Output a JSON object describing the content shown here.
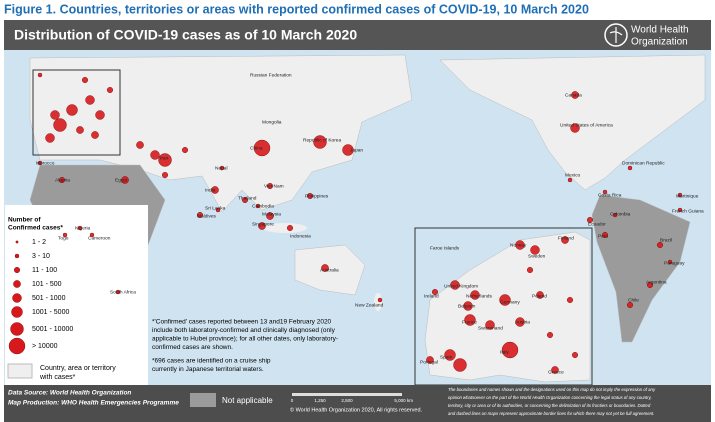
{
  "title": "Figure 1. Countries, territories or areas with reported confirmed cases of COVID-19, 10 March 2020",
  "map_title": "Distribution of COVID-19 cases as of 10 March 2020",
  "logo": [
    "World Health",
    "Organization"
  ],
  "legend": {
    "title": [
      "Number of",
      "Confirmed cases*"
    ],
    "classes": [
      "1 - 2",
      "3 - 10",
      "11 - 100",
      "101 - 500",
      "501 - 1000",
      "1001 - 5000",
      "5001 - 10000",
      "> 10000"
    ],
    "with_cases": [
      "Country, area or territory",
      "with cases*"
    ]
  },
  "notes": [
    [
      "*'Confirmed' cases reported between 13 and19 February 2020",
      "include both laboratory-confirmed and clinically diagnosed (only",
      "applicable to Hubei province); for all other dates, only laboratory-",
      "confirmed cases are shown."
    ],
    [
      "*696 cases are identified on a cruise ship",
      "currently in Japanese territorial waters."
    ]
  ],
  "footer": {
    "source": "Data Source: World Health Organization",
    "production": "Map Production: WHO Health Emergencies Programme",
    "not_applicable": "Not applicable",
    "scale": [
      "0",
      "1,250",
      "2,500",
      "5,000",
      "km"
    ],
    "copyright": "© World Health Organization 2020, All rights reserved.",
    "disclaimer": [
      "The boundaries and names shown and the designations used on this map do not imply the expression of any",
      "opinion whatsoever on the part of the World Health Organization concerning the legal status of any country,",
      "territory, city or area or of its authorities, or concerning the delimitation of its frontiers or boundaries. Dotted",
      "and dashed lines on maps represent approximate border lines for which there may not yet be full agreement."
    ]
  },
  "places": [
    "Russian Federation",
    "Mongolia",
    "China",
    "Japan",
    "Republic of Korea",
    "India",
    "Iran",
    "Australia",
    "New Zealand",
    "Canada",
    "United States of America",
    "Mexico",
    "Brazil",
    "Peru",
    "Chile",
    "Argentina",
    "Nigeria",
    "South Africa",
    "Egypt",
    "Thailand",
    "Philippines",
    "Indonesia",
    "Malaysia",
    "Singapore",
    "Viet Nam",
    "Sri Lanka",
    "Maldives",
    "Nepal",
    "Cambodia",
    "Algeria",
    "Morocco",
    "Togo",
    "Cameroon",
    "Dominican Republic",
    "Costa Rica",
    "Colombia",
    "Ecuador",
    "Paraguay",
    "French Guiana",
    "Martinique",
    "Italy",
    "France",
    "Spain",
    "Germany",
    "United Kingdom",
    "Norway",
    "Sweden",
    "Finland",
    "Portugal",
    "Ireland",
    "Netherlands",
    "Belgium",
    "Switzerland",
    "Austria",
    "Poland",
    "Greece",
    "Faroe Islands"
  ]
}
